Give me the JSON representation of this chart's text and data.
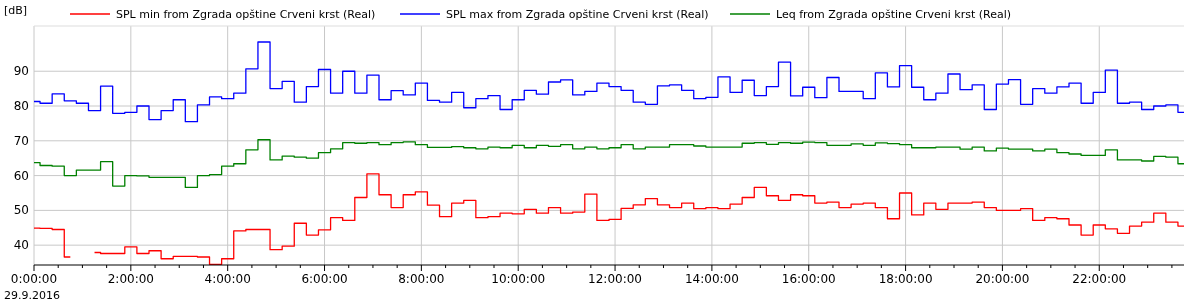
{
  "chart_data": {
    "type": "step",
    "ylabel": "[dB]",
    "x": [
      0,
      0.25,
      0.5,
      0.75,
      1,
      1.25,
      1.5,
      1.75,
      2,
      2.25,
      2.5,
      2.75,
      3,
      3.25,
      3.5,
      3.75,
      4,
      4.25,
      4.5,
      4.75,
      5,
      5.25,
      5.5,
      5.75,
      6,
      6.25,
      6.5,
      6.75,
      7,
      7.25,
      7.5,
      7.75,
      8,
      8.25,
      8.5,
      8.75,
      9,
      9.25,
      9.5,
      9.75,
      10,
      10.25,
      10.5,
      10.75,
      11,
      11.25,
      11.5,
      11.75,
      12,
      12.25,
      12.5,
      12.75,
      13,
      13.25,
      13.5,
      13.75,
      14,
      14.25,
      14.5,
      14.75,
      15,
      15.25,
      15.5,
      15.75,
      16,
      16.25,
      16.5,
      16.75,
      17,
      17.25,
      17.5,
      17.75,
      18,
      18.25,
      18.5,
      18.75,
      19,
      19.25,
      19.5,
      19.75,
      20,
      20.25,
      20.5,
      20.75,
      21,
      21.25,
      21.5,
      21.75,
      22,
      22.25,
      22.5,
      22.75,
      23,
      23.25,
      23.5,
      23.75
    ],
    "series": [
      {
        "name": "SPL min from Zgrada opštine Crveni krst (Real)",
        "color": "#ff0000",
        "values": [
          44.9,
          44.8,
          44.5,
          36.6,
          null,
          37.9,
          37.6,
          37.6,
          39.5,
          37.6,
          38.4,
          36.1,
          36.8,
          36.8,
          36.6,
          34.5,
          36.1,
          44.1,
          44.5,
          44.5,
          38.7,
          39.7,
          46.3,
          42.9,
          44.4,
          47.9,
          47.1,
          53.7,
          60.5,
          54.5,
          50.8,
          54.5,
          55.3,
          51.5,
          48.2,
          52.1,
          52.9,
          47.9,
          48.2,
          49.2,
          49,
          50.3,
          49.2,
          50.8,
          49.2,
          49.5,
          54.7,
          47.1,
          47.4,
          50.6,
          51.6,
          53.4,
          51.6,
          50.8,
          52.1,
          50.5,
          50.8,
          50.5,
          51.8,
          53.7,
          56.6,
          54.2,
          52.9,
          54.5,
          54.2,
          52.1,
          52.4,
          50.8,
          51.8,
          52.1,
          50.8,
          47.6,
          55,
          48.7,
          52.1,
          50.3,
          52.1,
          52.1,
          52.4,
          50.8,
          50,
          50,
          50.5,
          47.1,
          47.9,
          47.6,
          45.8,
          42.9,
          45.8,
          44.7,
          43.4,
          45.5,
          46.6,
          49.2,
          46.6,
          45.5
        ]
      },
      {
        "name": "SPL max from Zgrada opštine Crveni krst (Real)",
        "color": "#0000ff",
        "values": [
          81.3,
          80.8,
          83.5,
          81.5,
          80.8,
          78.7,
          85.7,
          77.9,
          78.2,
          80,
          76.1,
          78.7,
          81.8,
          75.5,
          80.3,
          82.6,
          82.1,
          83.7,
          90.7,
          98.4,
          85,
          87.1,
          81.1,
          85.6,
          90.5,
          83.7,
          90,
          83.7,
          88.9,
          81.8,
          84.4,
          83.2,
          86.6,
          81.6,
          81.1,
          83.9,
          79.5,
          82.1,
          83,
          79,
          81.8,
          84.5,
          83.4,
          86.9,
          87.5,
          83.2,
          84.2,
          86.6,
          85.6,
          84.5,
          81.1,
          80.5,
          85.8,
          86.1,
          84.5,
          82.1,
          82.5,
          88.4,
          83.9,
          87.4,
          83,
          85.6,
          92.6,
          82.9,
          85.4,
          82.4,
          88.2,
          84.2,
          84.2,
          82.1,
          89.5,
          85.5,
          91.6,
          85.4,
          81.8,
          83.7,
          89.2,
          84.7,
          86.1,
          79,
          86.3,
          87.6,
          80.5,
          85,
          83.7,
          85.5,
          86.6,
          80.8,
          83.9,
          90.3,
          80.8,
          81.1,
          79,
          80,
          80.3,
          78.2
        ]
      },
      {
        "name": "Leq from Zgrada opštine Crveni krst (Real)",
        "color": "#008000",
        "values": [
          63.7,
          62.9,
          62.7,
          60,
          61.6,
          61.6,
          64,
          57,
          60,
          59.9,
          59.5,
          59.5,
          59.5,
          56.6,
          60,
          60.3,
          62.7,
          63.4,
          67.4,
          70.3,
          64.5,
          65.6,
          65.3,
          65,
          66.6,
          67.7,
          69.5,
          69.3,
          69.5,
          68.9,
          69.5,
          69.7,
          68.9,
          68.1,
          68.1,
          68.3,
          68,
          67.7,
          68.2,
          68,
          68.7,
          68,
          68.7,
          68.4,
          68.9,
          67.7,
          68.2,
          67.7,
          68,
          68.9,
          67.7,
          68.2,
          68.2,
          68.9,
          68.9,
          68.5,
          68.2,
          68.2,
          68.2,
          69.3,
          69.5,
          69,
          69.5,
          69.3,
          69.6,
          69.5,
          68.7,
          68.7,
          69.1,
          68.7,
          69.4,
          69.2,
          68.9,
          68,
          68,
          68.2,
          68.2,
          67.6,
          68.2,
          67.1,
          67.9,
          67.6,
          67.6,
          67.1,
          67.6,
          66.6,
          66.2,
          65.8,
          65.8,
          67.4,
          64.5,
          64.5,
          64.2,
          65.5,
          65.3,
          63.4
        ]
      }
    ],
    "xlim": [
      0,
      23.75
    ],
    "xticks": [
      {
        "value": 0,
        "label": "0:00:00"
      },
      {
        "value": 0.5,
        "label": null
      },
      {
        "value": 1,
        "label": null
      },
      {
        "value": 1.5,
        "label": null
      },
      {
        "value": 2,
        "label": "2:00:00"
      },
      {
        "value": 2.5,
        "label": null
      },
      {
        "value": 3,
        "label": null
      },
      {
        "value": 3.5,
        "label": null
      },
      {
        "value": 4,
        "label": "4:00:00"
      },
      {
        "value": 4.5,
        "label": null
      },
      {
        "value": 5,
        "label": null
      },
      {
        "value": 5.5,
        "label": null
      },
      {
        "value": 6,
        "label": "6:00:00"
      },
      {
        "value": 6.5,
        "label": null
      },
      {
        "value": 7,
        "label": null
      },
      {
        "value": 7.5,
        "label": null
      },
      {
        "value": 8,
        "label": "8:00:00"
      },
      {
        "value": 8.5,
        "label": null
      },
      {
        "value": 9,
        "label": null
      },
      {
        "value": 9.5,
        "label": null
      },
      {
        "value": 10,
        "label": "10:00:00"
      },
      {
        "value": 10.5,
        "label": null
      },
      {
        "value": 11,
        "label": null
      },
      {
        "value": 11.5,
        "label": null
      },
      {
        "value": 12,
        "label": "12:00:00"
      },
      {
        "value": 12.5,
        "label": null
      },
      {
        "value": 13,
        "label": null
      },
      {
        "value": 13.5,
        "label": null
      },
      {
        "value": 14,
        "label": "14:00:00"
      },
      {
        "value": 14.5,
        "label": null
      },
      {
        "value": 15,
        "label": null
      },
      {
        "value": 15.5,
        "label": null
      },
      {
        "value": 16,
        "label": "16:00:00"
      },
      {
        "value": 16.5,
        "label": null
      },
      {
        "value": 17,
        "label": null
      },
      {
        "value": 17.5,
        "label": null
      },
      {
        "value": 18,
        "label": "18:00:00"
      },
      {
        "value": 18.5,
        "label": null
      },
      {
        "value": 19,
        "label": null
      },
      {
        "value": 19.5,
        "label": null
      },
      {
        "value": 20,
        "label": "20:00:00"
      },
      {
        "value": 20.5,
        "label": null
      },
      {
        "value": 21,
        "label": null
      },
      {
        "value": 21.5,
        "label": null
      },
      {
        "value": 22,
        "label": "22:00:00"
      },
      {
        "value": 22.5,
        "label": null
      },
      {
        "value": 23,
        "label": null
      },
      {
        "value": 23.5,
        "label": null
      }
    ],
    "ylim": [
      34.3,
      103
    ],
    "yticks": [
      40,
      50,
      60,
      70,
      80,
      90
    ],
    "annotations": [
      "29.9.2016"
    ],
    "grid": true,
    "legend": "top"
  }
}
